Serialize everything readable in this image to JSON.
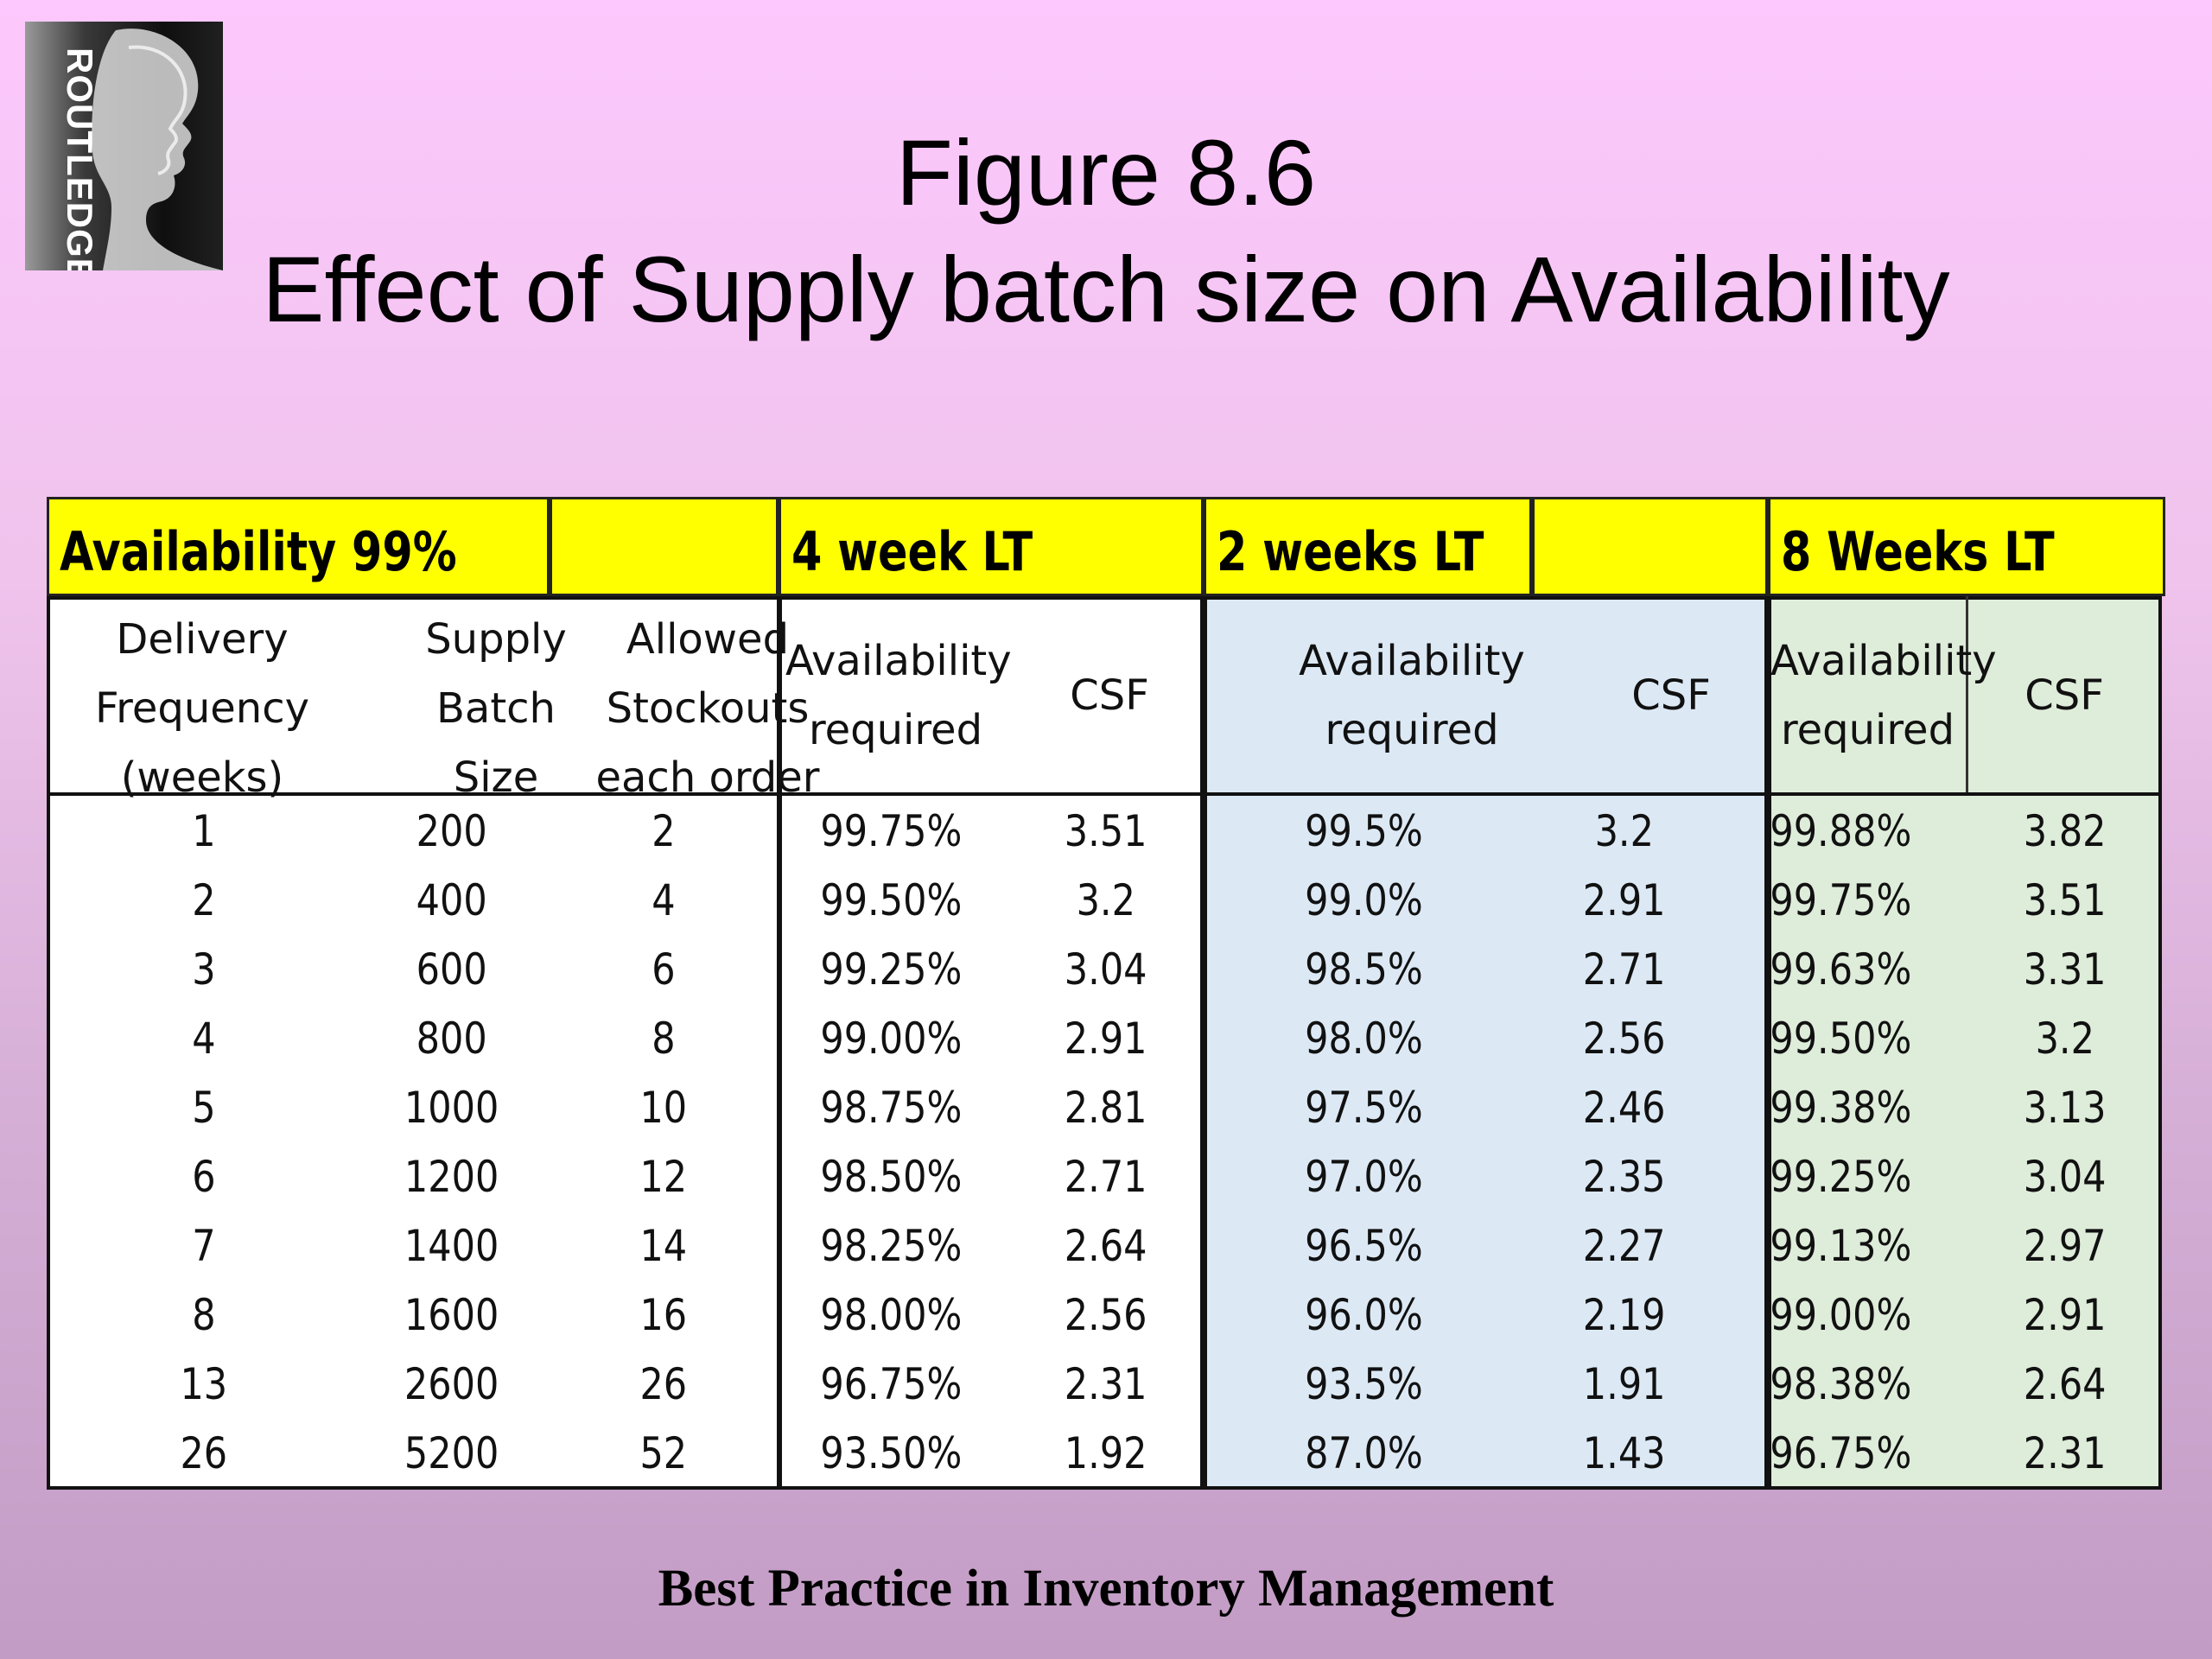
{
  "logo": {
    "text": "ROUTLEDGE"
  },
  "title": {
    "line1": "Figure 8.6",
    "line2": "Effect of Supply batch size on Availability"
  },
  "table": {
    "group_headers": [
      "Availability 99%",
      "4 week LT",
      "2 weeks LT",
      "8 Weeks LT"
    ],
    "col_headers": {
      "delivery_frequency": [
        "Delivery",
        "Frequency",
        "(weeks)"
      ],
      "supply_batch": [
        "Supply",
        "Batch",
        "Size"
      ],
      "allowed_stockouts": [
        "Allowed",
        "Stockouts",
        "each order"
      ],
      "availability_required": [
        "Availability",
        "required"
      ],
      "csf": "CSF"
    },
    "rows": [
      [
        "1",
        "200",
        "2",
        "99.75%",
        "3.51",
        "99.5%",
        "3.2",
        "99.88%",
        "3.82"
      ],
      [
        "2",
        "400",
        "4",
        "99.50%",
        "3.2",
        "99.0%",
        "2.91",
        "99.75%",
        "3.51"
      ],
      [
        "3",
        "600",
        "6",
        "99.25%",
        "3.04",
        "98.5%",
        "2.71",
        "99.63%",
        "3.31"
      ],
      [
        "4",
        "800",
        "8",
        "99.00%",
        "2.91",
        "98.0%",
        "2.56",
        "99.50%",
        "3.2"
      ],
      [
        "5",
        "1000",
        "10",
        "98.75%",
        "2.81",
        "97.5%",
        "2.46",
        "99.38%",
        "3.13"
      ],
      [
        "6",
        "1200",
        "12",
        "98.50%",
        "2.71",
        "97.0%",
        "2.35",
        "99.25%",
        "3.04"
      ],
      [
        "7",
        "1400",
        "14",
        "98.25%",
        "2.64",
        "96.5%",
        "2.27",
        "99.13%",
        "2.97"
      ],
      [
        "8",
        "1600",
        "16",
        "98.00%",
        "2.56",
        "96.0%",
        "2.19",
        "99.00%",
        "2.91"
      ],
      [
        "13",
        "2600",
        "26",
        "96.75%",
        "2.31",
        "93.5%",
        "1.91",
        "98.38%",
        "2.64"
      ],
      [
        "26",
        "5200",
        "52",
        "93.50%",
        "1.92",
        "87.0%",
        "1.43",
        "96.75%",
        "2.31"
      ]
    ]
  },
  "footer": {
    "text": "Best Practice in Inventory Management"
  }
}
